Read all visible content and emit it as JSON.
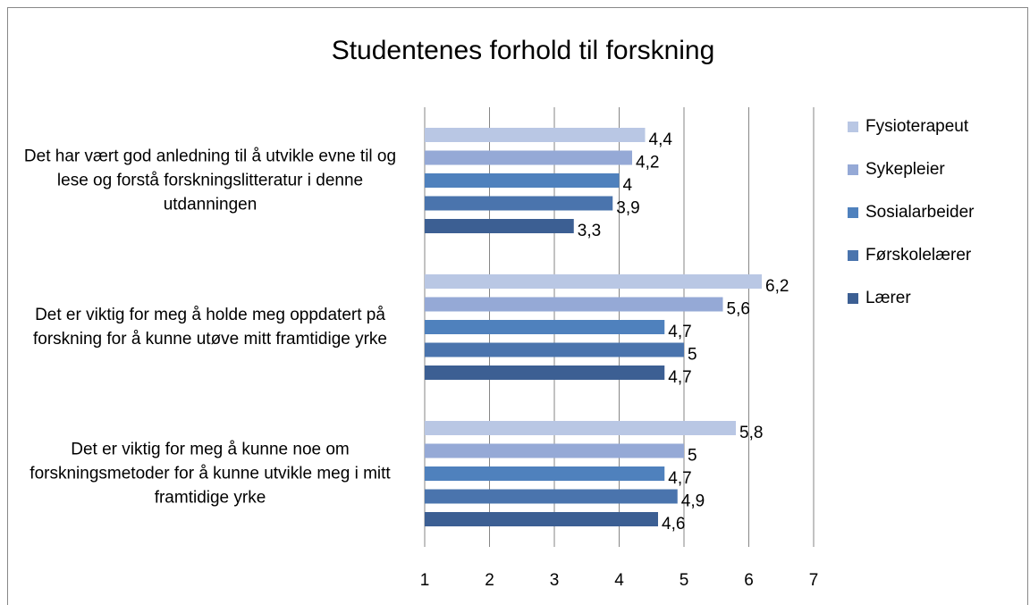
{
  "chart_data": {
    "type": "bar",
    "orientation": "horizontal",
    "title": "Studentenes forhold til forskning",
    "categories": [
      "Det har vært god anledning til å utvikle evne til og lese og forstå forskningslitteratur i denne utdanningen",
      "Det er viktig for meg å holde meg oppdatert på forskning for å kunne utøve mitt framtidige yrke",
      "Det er viktig for meg å kunne noe om forskningsmetoder for å kunne utvikle meg i mitt framtidige yrke"
    ],
    "series": [
      {
        "name": "Fysioterapeut",
        "color": "#b9c7e4",
        "values": [
          4.4,
          6.2,
          5.8
        ],
        "value_labels": [
          "4,4",
          "6,2",
          "5,8"
        ]
      },
      {
        "name": "Sykepleier",
        "color": "#95a9d6",
        "values": [
          4.2,
          5.6,
          5
        ],
        "value_labels": [
          "4,2",
          "5,6",
          "5"
        ]
      },
      {
        "name": "Sosialarbeider",
        "color": "#4f81bd",
        "values": [
          4,
          4.7,
          4.7
        ],
        "value_labels": [
          "4",
          "4,7",
          "4,7"
        ]
      },
      {
        "name": "Førskolelærer",
        "color": "#4a74ad",
        "values": [
          3.9,
          5,
          4.9
        ],
        "value_labels": [
          "3,9",
          "5",
          "4,9"
        ]
      },
      {
        "name": "Lærer",
        "color": "#3c5f93",
        "values": [
          3.3,
          4.7,
          4.6
        ],
        "value_labels": [
          "3,3",
          "4,7",
          "4,6"
        ]
      }
    ],
    "xlim": [
      1,
      7
    ],
    "xticks": [
      1,
      2,
      3,
      4,
      5,
      6,
      7
    ],
    "grid": true,
    "legend": "right"
  }
}
